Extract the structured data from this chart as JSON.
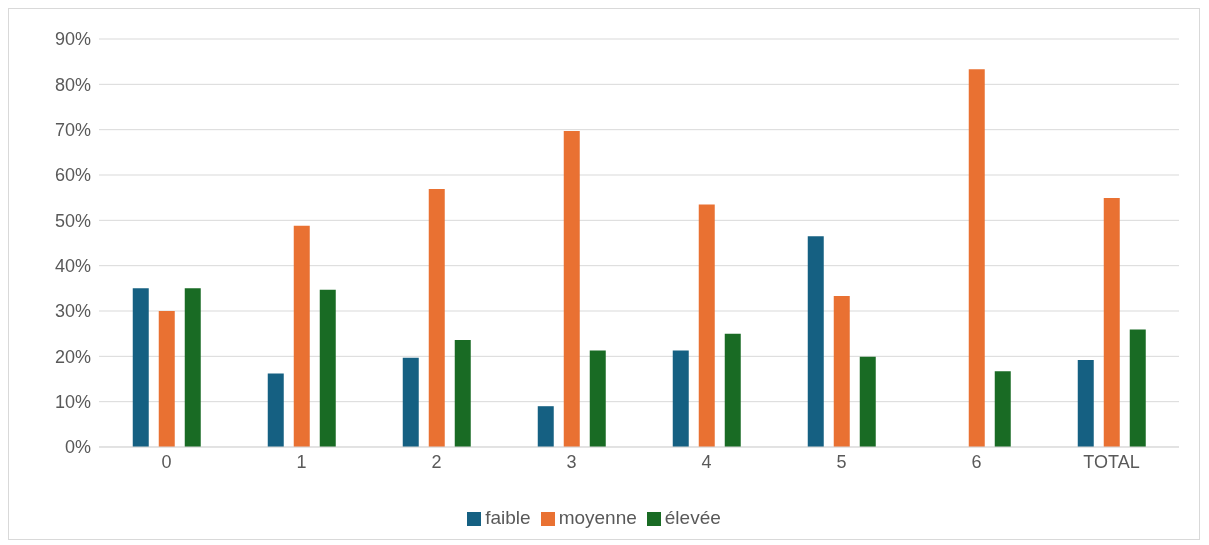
{
  "chart_data": {
    "type": "bar",
    "categories": [
      "0",
      "1",
      "2",
      "3",
      "4",
      "5",
      "6",
      "TOTAL"
    ],
    "series": [
      {
        "name": "faible",
        "color": "#156082",
        "values": [
          35,
          16.2,
          19.7,
          9,
          21.3,
          46.5,
          0,
          19.2
        ]
      },
      {
        "name": "moyenne",
        "color": "#e97132",
        "values": [
          30,
          48.8,
          56.9,
          69.7,
          53.5,
          33.3,
          83.3,
          54.9
        ]
      },
      {
        "name": "élevée",
        "color": "#196b24",
        "values": [
          35,
          34.7,
          23.6,
          21.3,
          25,
          19.9,
          16.7,
          25.9
        ]
      }
    ],
    "ylim": [
      0,
      90
    ],
    "yticks": [
      {
        "value": 0,
        "label": "0%"
      },
      {
        "value": 10,
        "label": "10%"
      },
      {
        "value": 20,
        "label": "20%"
      },
      {
        "value": 30,
        "label": "30%"
      },
      {
        "value": 40,
        "label": "40%"
      },
      {
        "value": 50,
        "label": "50%"
      },
      {
        "value": 60,
        "label": "60%"
      },
      {
        "value": 70,
        "label": "70%"
      },
      {
        "value": 80,
        "label": "80%"
      },
      {
        "value": 90,
        "label": "90%"
      }
    ],
    "grid": "y",
    "legend": "bottom"
  }
}
